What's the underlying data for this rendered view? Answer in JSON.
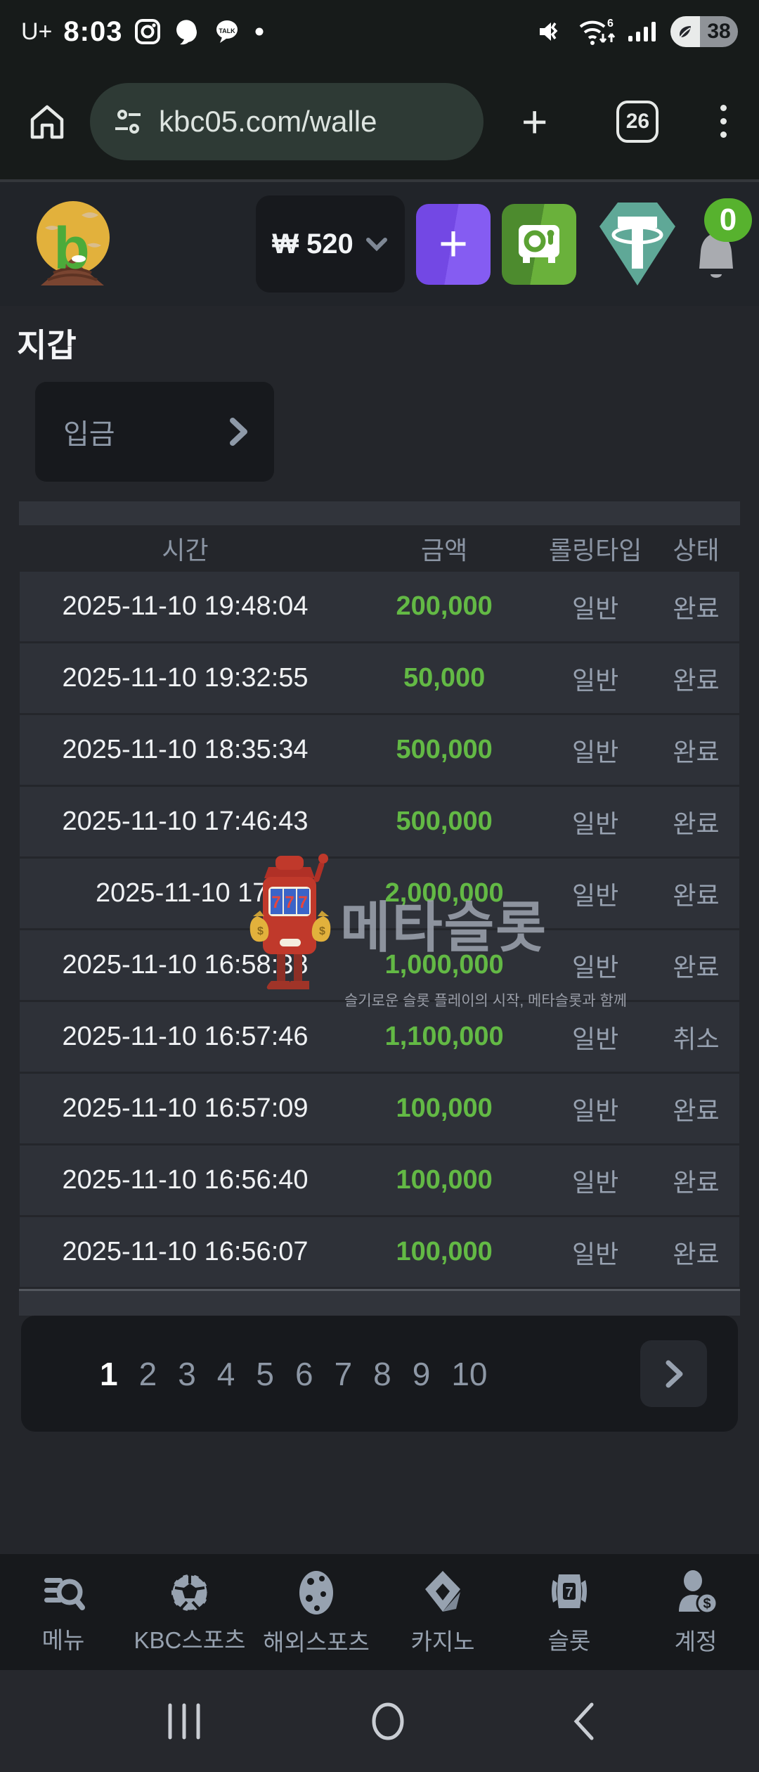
{
  "status_bar": {
    "carrier": "U+",
    "time": "8:03",
    "battery_percent": "38"
  },
  "browser": {
    "url": "kbc05.com/walle",
    "tab_count": "26"
  },
  "site_header": {
    "balance": "₩ 520",
    "notification_count": "0"
  },
  "wallet": {
    "title": "지갑",
    "deposit_label": "입금"
  },
  "table": {
    "headers": {
      "time": "시간",
      "amount": "금액",
      "rolling_type": "롤링타입",
      "status": "상태"
    },
    "rows": [
      {
        "time": "2025-11-10 19:48:04",
        "amount": "200,000",
        "type": "일반",
        "status": "완료"
      },
      {
        "time": "2025-11-10 19:32:55",
        "amount": "50,000",
        "type": "일반",
        "status": "완료"
      },
      {
        "time": "2025-11-10 18:35:34",
        "amount": "500,000",
        "type": "일반",
        "status": "완료"
      },
      {
        "time": "2025-11-10 17:46:43",
        "amount": "500,000",
        "type": "일반",
        "status": "완료"
      },
      {
        "time": "2025-11-10 17:",
        "amount": "2,000,000",
        "type": "일반",
        "status": "완료"
      },
      {
        "time": "2025-11-10 16:58:38",
        "amount": "1,000,000",
        "type": "일반",
        "status": "완료"
      },
      {
        "time": "2025-11-10 16:57:46",
        "amount": "1,100,000",
        "type": "일반",
        "status": "취소"
      },
      {
        "time": "2025-11-10 16:57:09",
        "amount": "100,000",
        "type": "일반",
        "status": "완료"
      },
      {
        "time": "2025-11-10 16:56:40",
        "amount": "100,000",
        "type": "일반",
        "status": "완료"
      },
      {
        "time": "2025-11-10 16:56:07",
        "amount": "100,000",
        "type": "일반",
        "status": "완료"
      }
    ]
  },
  "watermark": {
    "slot_display": "777",
    "title": "메타슬롯",
    "subtitle": "슬기로운 슬롯 플레이의 시작, 메타슬롯과 함께"
  },
  "pagination": {
    "pages": [
      "1",
      "2",
      "3",
      "4",
      "5",
      "6",
      "7",
      "8",
      "9",
      "10"
    ],
    "active": "1"
  },
  "bottom_nav": {
    "items": [
      {
        "label": "메뉴"
      },
      {
        "label": "KBC스포츠"
      },
      {
        "label": "해외스포츠"
      },
      {
        "label": "카지노"
      },
      {
        "label": "슬롯"
      },
      {
        "label": "계정"
      }
    ]
  },
  "colors": {
    "amount_green": "#63b945",
    "accent_purple": "#7348e4",
    "accent_green": "#6ab13b",
    "tether_teal": "#5fa897",
    "badge_green": "#57b22e"
  }
}
